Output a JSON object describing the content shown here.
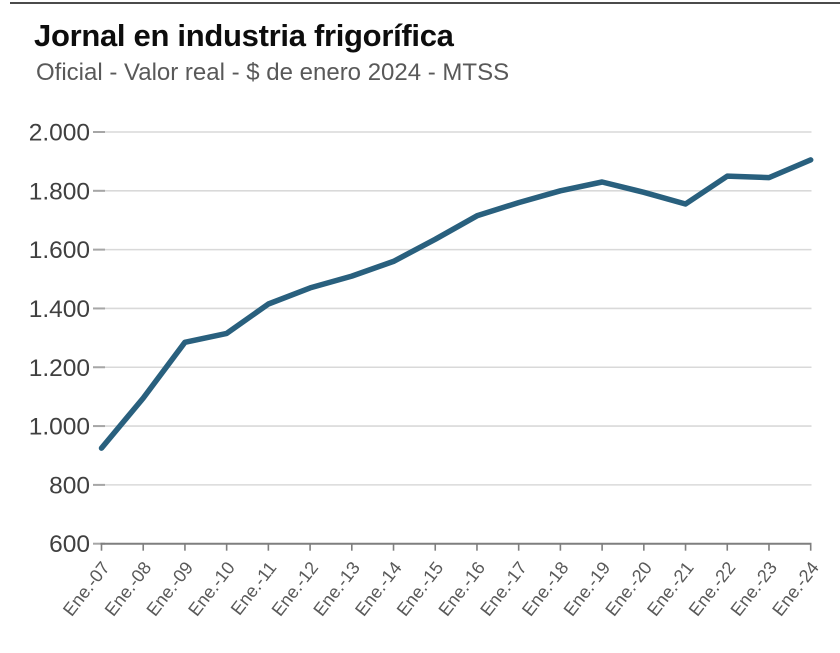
{
  "chart_data": {
    "type": "line",
    "title": "Jornal en industria frigorífica",
    "subtitle": "Oficial - Valor real - $ de enero 2024 - MTSS",
    "categories": [
      "Ene.-07",
      "Ene.-08",
      "Ene.-09",
      "Ene.-10",
      "Ene.-11",
      "Ene.-12",
      "Ene.-13",
      "Ene.-14",
      "Ene.-15",
      "Ene.-16",
      "Ene.-17",
      "Ene.-18",
      "Ene.-19",
      "Ene.-20",
      "Ene.-21",
      "Ene.-22",
      "Ene.-23",
      "Ene.-24"
    ],
    "values": [
      925,
      1095,
      1285,
      1315,
      1415,
      1470,
      1510,
      1560,
      1635,
      1715,
      1760,
      1800,
      1830,
      1795,
      1755,
      1850,
      1845,
      1905
    ],
    "xlabel": "",
    "ylabel": "",
    "ylim": [
      600,
      2000
    ],
    "y_ticks": [
      2000,
      1800,
      1600,
      1400,
      1200,
      1000,
      800,
      600
    ],
    "y_tick_labels": [
      "2.000",
      "1.800",
      "1.600",
      "1.400",
      "1.200",
      "1.000",
      "800",
      "600"
    ],
    "grid": "horizontal",
    "legend_position": "none",
    "colors": {
      "line": "#29607e",
      "grid": "#d9d9d9",
      "tick_dash": "#a6a6a6",
      "axis": "#7f7f7f",
      "y_label": "#404040",
      "x_label": "#595959",
      "title": "#0d0d0d",
      "subtitle": "#595959",
      "top_rule": "#4b4b4b"
    }
  }
}
